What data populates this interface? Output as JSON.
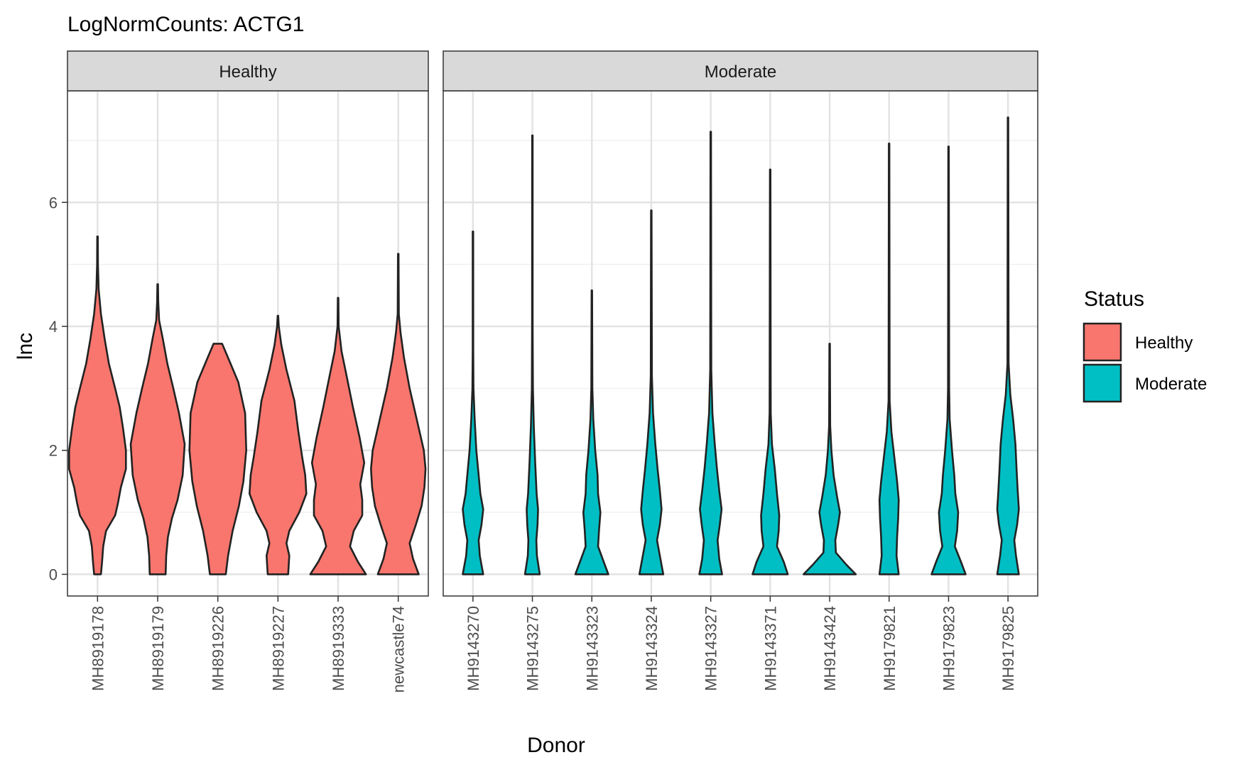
{
  "chart_data": {
    "type": "violin",
    "title": "LogNormCounts: ACTG1",
    "xlabel": "Donor",
    "ylabel": "lnc",
    "ylim": [
      -0.35,
      7.8
    ],
    "yticks": [
      0,
      2,
      4,
      6
    ],
    "grid": true,
    "legend": {
      "title": "Status",
      "position": "right",
      "entries": [
        {
          "label": "Healthy",
          "color": "#F8766D"
        },
        {
          "label": "Moderate",
          "color": "#00BFC4"
        }
      ]
    },
    "panels": [
      {
        "name": "Healthy",
        "color": "#F8766D",
        "categories": [
          "MH8919178",
          "MH8919179",
          "MH8919226",
          "MH8919227",
          "MH8919333",
          "newcastle74"
        ],
        "violins": [
          {
            "donor": "MH8919178",
            "max": 5.45,
            "profile": [
              [
                0,
                0.12
              ],
              [
                0.2,
                0.16
              ],
              [
                0.45,
                0.2
              ],
              [
                0.7,
                0.3
              ],
              [
                0.95,
                0.62
              ],
              [
                1.15,
                0.72
              ],
              [
                1.4,
                0.82
              ],
              [
                1.7,
                1.0
              ],
              [
                2.0,
                1.0
              ],
              [
                2.35,
                0.9
              ],
              [
                2.7,
                0.78
              ],
              [
                3.0,
                0.62
              ],
              [
                3.4,
                0.4
              ],
              [
                3.8,
                0.25
              ],
              [
                4.2,
                0.12
              ],
              [
                4.6,
                0.04
              ],
              [
                5.0,
                0.015
              ],
              [
                5.45,
                0.01
              ]
            ]
          },
          {
            "donor": "MH8919179",
            "max": 4.68,
            "profile": [
              [
                0,
                0.28
              ],
              [
                0.3,
                0.3
              ],
              [
                0.6,
                0.36
              ],
              [
                0.9,
                0.5
              ],
              [
                1.2,
                0.7
              ],
              [
                1.6,
                0.88
              ],
              [
                2.1,
                0.95
              ],
              [
                2.6,
                0.75
              ],
              [
                3.0,
                0.55
              ],
              [
                3.4,
                0.34
              ],
              [
                3.8,
                0.18
              ],
              [
                4.1,
                0.05
              ],
              [
                4.4,
                0.02
              ],
              [
                4.68,
                0.01
              ]
            ]
          },
          {
            "donor": "MH8919226",
            "max": 3.72,
            "profile": [
              [
                0,
                0.28
              ],
              [
                0.3,
                0.36
              ],
              [
                0.7,
                0.52
              ],
              [
                1.1,
                0.74
              ],
              [
                1.5,
                0.9
              ],
              [
                2.0,
                1.0
              ],
              [
                2.6,
                0.96
              ],
              [
                3.1,
                0.72
              ],
              [
                3.45,
                0.4
              ],
              [
                3.72,
                0.15
              ]
            ]
          },
          {
            "donor": "MH8919227",
            "max": 4.17,
            "profile": [
              [
                0,
                0.36
              ],
              [
                0.3,
                0.4
              ],
              [
                0.5,
                0.3
              ],
              [
                0.7,
                0.4
              ],
              [
                1.0,
                0.75
              ],
              [
                1.3,
                1.0
              ],
              [
                1.6,
                0.96
              ],
              [
                1.9,
                0.85
              ],
              [
                2.3,
                0.72
              ],
              [
                2.8,
                0.58
              ],
              [
                3.3,
                0.3
              ],
              [
                3.7,
                0.12
              ],
              [
                4.0,
                0.03
              ],
              [
                4.17,
                0.01
              ]
            ]
          },
          {
            "donor": "MH8919333",
            "max": 4.46,
            "profile": [
              [
                0,
                0.98
              ],
              [
                0.2,
                0.7
              ],
              [
                0.45,
                0.42
              ],
              [
                0.7,
                0.55
              ],
              [
                0.95,
                0.85
              ],
              [
                1.2,
                0.85
              ],
              [
                1.45,
                0.78
              ],
              [
                1.8,
                0.92
              ],
              [
                2.2,
                0.76
              ],
              [
                2.7,
                0.52
              ],
              [
                3.2,
                0.3
              ],
              [
                3.6,
                0.12
              ],
              [
                4.0,
                0.02
              ],
              [
                4.46,
                0.01
              ]
            ]
          },
          {
            "donor": "newcastle74",
            "max": 5.17,
            "profile": [
              [
                0,
                0.72
              ],
              [
                0.25,
                0.52
              ],
              [
                0.5,
                0.4
              ],
              [
                0.8,
                0.62
              ],
              [
                1.1,
                0.82
              ],
              [
                1.4,
                0.92
              ],
              [
                1.7,
                0.96
              ],
              [
                2.0,
                0.9
              ],
              [
                2.5,
                0.65
              ],
              [
                3.0,
                0.4
              ],
              [
                3.5,
                0.2
              ],
              [
                3.9,
                0.08
              ],
              [
                4.2,
                0.02
              ],
              [
                5.17,
                0.01
              ]
            ]
          }
        ]
      },
      {
        "name": "Moderate",
        "color": "#00BFC4",
        "categories": [
          "MH9143270",
          "MH9143275",
          "MH9143323",
          "MH9143324",
          "MH9143327",
          "MH9143371",
          "MH9143424",
          "MH9179821",
          "MH9179823",
          "MH9179825"
        ],
        "violins": [
          {
            "donor": "MH9143270",
            "max": 5.53,
            "profile": [
              [
                0,
                0.36
              ],
              [
                0.3,
                0.24
              ],
              [
                0.55,
                0.2
              ],
              [
                0.8,
                0.3
              ],
              [
                1.05,
                0.36
              ],
              [
                1.3,
                0.26
              ],
              [
                1.6,
                0.2
              ],
              [
                2.0,
                0.12
              ],
              [
                2.5,
                0.06
              ],
              [
                3.0,
                0.02
              ],
              [
                3.6,
                0.01
              ],
              [
                5.53,
                0.008
              ]
            ]
          },
          {
            "donor": "MH9143275",
            "max": 7.08,
            "profile": [
              [
                0,
                0.26
              ],
              [
                0.3,
                0.16
              ],
              [
                0.55,
                0.14
              ],
              [
                0.8,
                0.18
              ],
              [
                1.05,
                0.2
              ],
              [
                1.3,
                0.15
              ],
              [
                1.8,
                0.1
              ],
              [
                2.4,
                0.05
              ],
              [
                3.0,
                0.02
              ],
              [
                4.0,
                0.01
              ],
              [
                7.08,
                0.008
              ]
            ]
          },
          {
            "donor": "MH9143323",
            "max": 4.58,
            "profile": [
              [
                0,
                0.58
              ],
              [
                0.2,
                0.42
              ],
              [
                0.45,
                0.22
              ],
              [
                0.7,
                0.25
              ],
              [
                1.0,
                0.3
              ],
              [
                1.3,
                0.22
              ],
              [
                1.6,
                0.2
              ],
              [
                2.0,
                0.12
              ],
              [
                2.5,
                0.05
              ],
              [
                3.0,
                0.02
              ],
              [
                4.58,
                0.008
              ]
            ]
          },
          {
            "donor": "MH9143324",
            "max": 5.87,
            "profile": [
              [
                0,
                0.42
              ],
              [
                0.25,
                0.32
              ],
              [
                0.55,
                0.2
              ],
              [
                0.8,
                0.3
              ],
              [
                1.05,
                0.36
              ],
              [
                1.35,
                0.3
              ],
              [
                1.7,
                0.22
              ],
              [
                2.1,
                0.14
              ],
              [
                2.6,
                0.06
              ],
              [
                3.2,
                0.02
              ],
              [
                5.87,
                0.008
              ]
            ]
          },
          {
            "donor": "MH9143327",
            "max": 7.14,
            "profile": [
              [
                0,
                0.4
              ],
              [
                0.25,
                0.3
              ],
              [
                0.55,
                0.24
              ],
              [
                0.8,
                0.32
              ],
              [
                1.05,
                0.38
              ],
              [
                1.35,
                0.3
              ],
              [
                1.7,
                0.22
              ],
              [
                2.1,
                0.14
              ],
              [
                2.6,
                0.06
              ],
              [
                3.3,
                0.02
              ],
              [
                7.14,
                0.008
              ]
            ]
          },
          {
            "donor": "MH9143371",
            "max": 6.53,
            "profile": [
              [
                0,
                0.62
              ],
              [
                0.2,
                0.48
              ],
              [
                0.45,
                0.24
              ],
              [
                0.7,
                0.3
              ],
              [
                0.95,
                0.32
              ],
              [
                1.3,
                0.24
              ],
              [
                1.7,
                0.16
              ],
              [
                2.1,
                0.06
              ],
              [
                2.6,
                0.02
              ],
              [
                6.53,
                0.008
              ]
            ]
          },
          {
            "donor": "MH9143424",
            "max": 3.72,
            "profile": [
              [
                0,
                0.92
              ],
              [
                0.15,
                0.6
              ],
              [
                0.35,
                0.22
              ],
              [
                0.55,
                0.2
              ],
              [
                0.8,
                0.3
              ],
              [
                1.0,
                0.36
              ],
              [
                1.25,
                0.26
              ],
              [
                1.6,
                0.14
              ],
              [
                2.0,
                0.06
              ],
              [
                2.4,
                0.02
              ],
              [
                3.72,
                0.008
              ]
            ]
          },
          {
            "donor": "MH9179821",
            "max": 6.95,
            "profile": [
              [
                0,
                0.34
              ],
              [
                0.3,
                0.26
              ],
              [
                0.6,
                0.28
              ],
              [
                0.9,
                0.32
              ],
              [
                1.2,
                0.34
              ],
              [
                1.5,
                0.28
              ],
              [
                1.9,
                0.18
              ],
              [
                2.3,
                0.08
              ],
              [
                2.8,
                0.02
              ],
              [
                6.95,
                0.008
              ]
            ]
          },
          {
            "donor": "MH9179823",
            "max": 6.9,
            "profile": [
              [
                0,
                0.6
              ],
              [
                0.2,
                0.44
              ],
              [
                0.45,
                0.22
              ],
              [
                0.7,
                0.3
              ],
              [
                1.0,
                0.34
              ],
              [
                1.3,
                0.24
              ],
              [
                1.6,
                0.2
              ],
              [
                2.0,
                0.12
              ],
              [
                2.5,
                0.04
              ],
              [
                3.0,
                0.02
              ],
              [
                6.9,
                0.008
              ]
            ]
          },
          {
            "donor": "MH9179825",
            "max": 7.37,
            "profile": [
              [
                0,
                0.38
              ],
              [
                0.3,
                0.28
              ],
              [
                0.55,
                0.22
              ],
              [
                0.8,
                0.32
              ],
              [
                1.05,
                0.38
              ],
              [
                1.35,
                0.34
              ],
              [
                1.7,
                0.3
              ],
              [
                2.1,
                0.26
              ],
              [
                2.5,
                0.18
              ],
              [
                2.9,
                0.08
              ],
              [
                3.4,
                0.02
              ],
              [
                7.37,
                0.008
              ]
            ]
          }
        ]
      }
    ]
  }
}
